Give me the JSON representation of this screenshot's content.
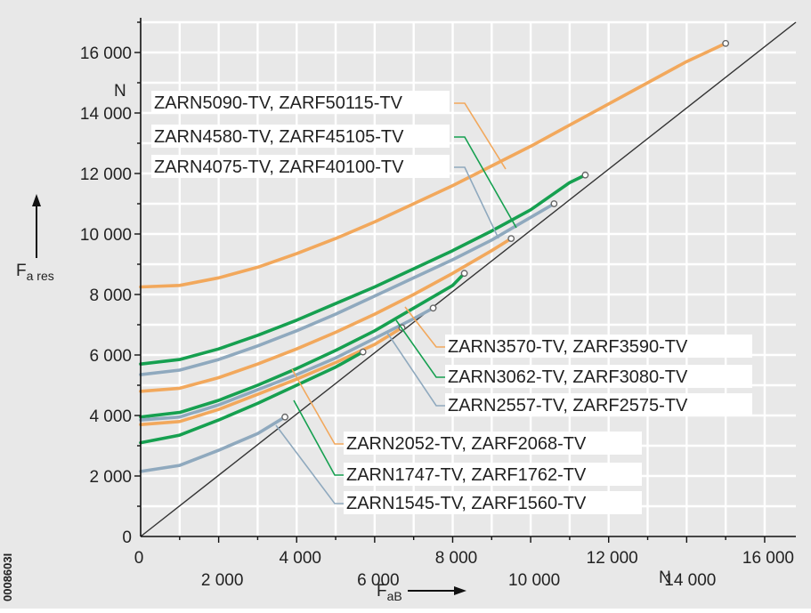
{
  "chart_data": {
    "type": "line",
    "title": "",
    "xlabel": "F_aB",
    "xunit": "N",
    "ylabel": "F_a res",
    "yunit": "N",
    "xlim": [
      0,
      16800
    ],
    "ylim": [
      0,
      17000
    ],
    "x_ticks": [
      0,
      2000,
      4000,
      6000,
      8000,
      10000,
      12000,
      14000,
      16000
    ],
    "x_tick_labels": [
      "0",
      "2 000",
      "4 000",
      "6 000",
      "8 000",
      "10 000",
      "12 000",
      "14 000",
      "16 000"
    ],
    "y_ticks": [
      0,
      2000,
      4000,
      6000,
      8000,
      10000,
      12000,
      14000,
      16000
    ],
    "y_tick_labels": [
      "0",
      "2 000",
      "4 000",
      "6 000",
      "8 000",
      "10 000",
      "12 000",
      "14 000",
      "16 000"
    ],
    "grid": true,
    "document_id": "0008603I",
    "colors": {
      "orange": "#f2a85c",
      "green": "#16a050",
      "blue": "#8fa9be",
      "diagonal": "#333333"
    },
    "series": [
      {
        "name": "ZARN5090-TV, ZARF50115-TV",
        "color": "orange",
        "points": [
          [
            0,
            8250
          ],
          [
            1000,
            8300
          ],
          [
            2000,
            8550
          ],
          [
            3000,
            8900
          ],
          [
            4000,
            9350
          ],
          [
            5000,
            9850
          ],
          [
            6000,
            10400
          ],
          [
            7000,
            11000
          ],
          [
            8000,
            11600
          ],
          [
            9000,
            12250
          ],
          [
            10000,
            12900
          ],
          [
            11000,
            13600
          ],
          [
            12000,
            14300
          ],
          [
            13000,
            15000
          ],
          [
            14000,
            15700
          ],
          [
            15000,
            16300
          ]
        ]
      },
      {
        "name": "ZARN4580-TV, ZARF45105-TV",
        "color": "green",
        "points": [
          [
            0,
            5700
          ],
          [
            1000,
            5850
          ],
          [
            2000,
            6200
          ],
          [
            3000,
            6650
          ],
          [
            4000,
            7150
          ],
          [
            5000,
            7700
          ],
          [
            6000,
            8250
          ],
          [
            7000,
            8850
          ],
          [
            8000,
            9450
          ],
          [
            9000,
            10100
          ],
          [
            10000,
            10800
          ],
          [
            11000,
            11700
          ],
          [
            11400,
            11950
          ]
        ]
      },
      {
        "name": "ZARN4075-TV, ZARF40100-TV",
        "color": "blue",
        "points": [
          [
            0,
            5350
          ],
          [
            1000,
            5500
          ],
          [
            2000,
            5850
          ],
          [
            3000,
            6300
          ],
          [
            4000,
            6800
          ],
          [
            5000,
            7350
          ],
          [
            6000,
            7950
          ],
          [
            7000,
            8550
          ],
          [
            8000,
            9150
          ],
          [
            9000,
            9800
          ],
          [
            10000,
            10550
          ],
          [
            10600,
            11000
          ]
        ]
      },
      {
        "name": "ZARN3570-TV, ZARF3590-TV",
        "color": "orange",
        "points": [
          [
            0,
            4800
          ],
          [
            1000,
            4900
          ],
          [
            2000,
            5250
          ],
          [
            3000,
            5700
          ],
          [
            4000,
            6200
          ],
          [
            5000,
            6750
          ],
          [
            6000,
            7350
          ],
          [
            7000,
            8000
          ],
          [
            8000,
            8700
          ],
          [
            9000,
            9450
          ],
          [
            9500,
            9850
          ]
        ]
      },
      {
        "name": "ZARN3062-TV, ZARF3080-TV",
        "color": "green",
        "points": [
          [
            0,
            3950
          ],
          [
            1000,
            4100
          ],
          [
            2000,
            4500
          ],
          [
            3000,
            5000
          ],
          [
            4000,
            5550
          ],
          [
            5000,
            6150
          ],
          [
            6000,
            6800
          ],
          [
            7000,
            7550
          ],
          [
            8000,
            8300
          ],
          [
            8300,
            8700
          ]
        ]
      },
      {
        "name": "ZARN2557-TV, ZARF2575-TV",
        "color": "blue",
        "points": [
          [
            0,
            3850
          ],
          [
            1000,
            3950
          ],
          [
            2000,
            4350
          ],
          [
            3000,
            4850
          ],
          [
            4000,
            5350
          ],
          [
            5000,
            5900
          ],
          [
            6000,
            6550
          ],
          [
            7000,
            7200
          ],
          [
            7500,
            7550
          ]
        ]
      },
      {
        "name": "ZARN2052-TV, ZARF2068-TV",
        "color": "orange",
        "points": [
          [
            0,
            3700
          ],
          [
            1000,
            3800
          ],
          [
            2000,
            4200
          ],
          [
            3000,
            4700
          ],
          [
            4000,
            5200
          ],
          [
            5000,
            5750
          ],
          [
            6000,
            6350
          ],
          [
            6700,
            6900
          ]
        ]
      },
      {
        "name": "ZARN1747-TV, ZARF1762-TV",
        "color": "green",
        "points": [
          [
            0,
            3100
          ],
          [
            1000,
            3350
          ],
          [
            2000,
            3850
          ],
          [
            3000,
            4400
          ],
          [
            4000,
            5000
          ],
          [
            5000,
            5600
          ],
          [
            5700,
            6100
          ]
        ]
      },
      {
        "name": "ZARN1545-TV, ZARF1560-TV",
        "color": "blue",
        "points": [
          [
            0,
            2150
          ],
          [
            1000,
            2350
          ],
          [
            2000,
            2850
          ],
          [
            3000,
            3400
          ],
          [
            3700,
            3950
          ]
        ]
      }
    ],
    "reference_line": {
      "points": [
        [
          0,
          0
        ],
        [
          16800,
          17000
        ]
      ]
    },
    "markers": [
      [
        3700,
        3950
      ],
      [
        5700,
        6100
      ],
      [
        6700,
        6900
      ],
      [
        7500,
        7550
      ],
      [
        8300,
        8700
      ],
      [
        9500,
        9850
      ],
      [
        10600,
        11000
      ],
      [
        11400,
        11950
      ],
      [
        15000,
        16300
      ]
    ]
  }
}
